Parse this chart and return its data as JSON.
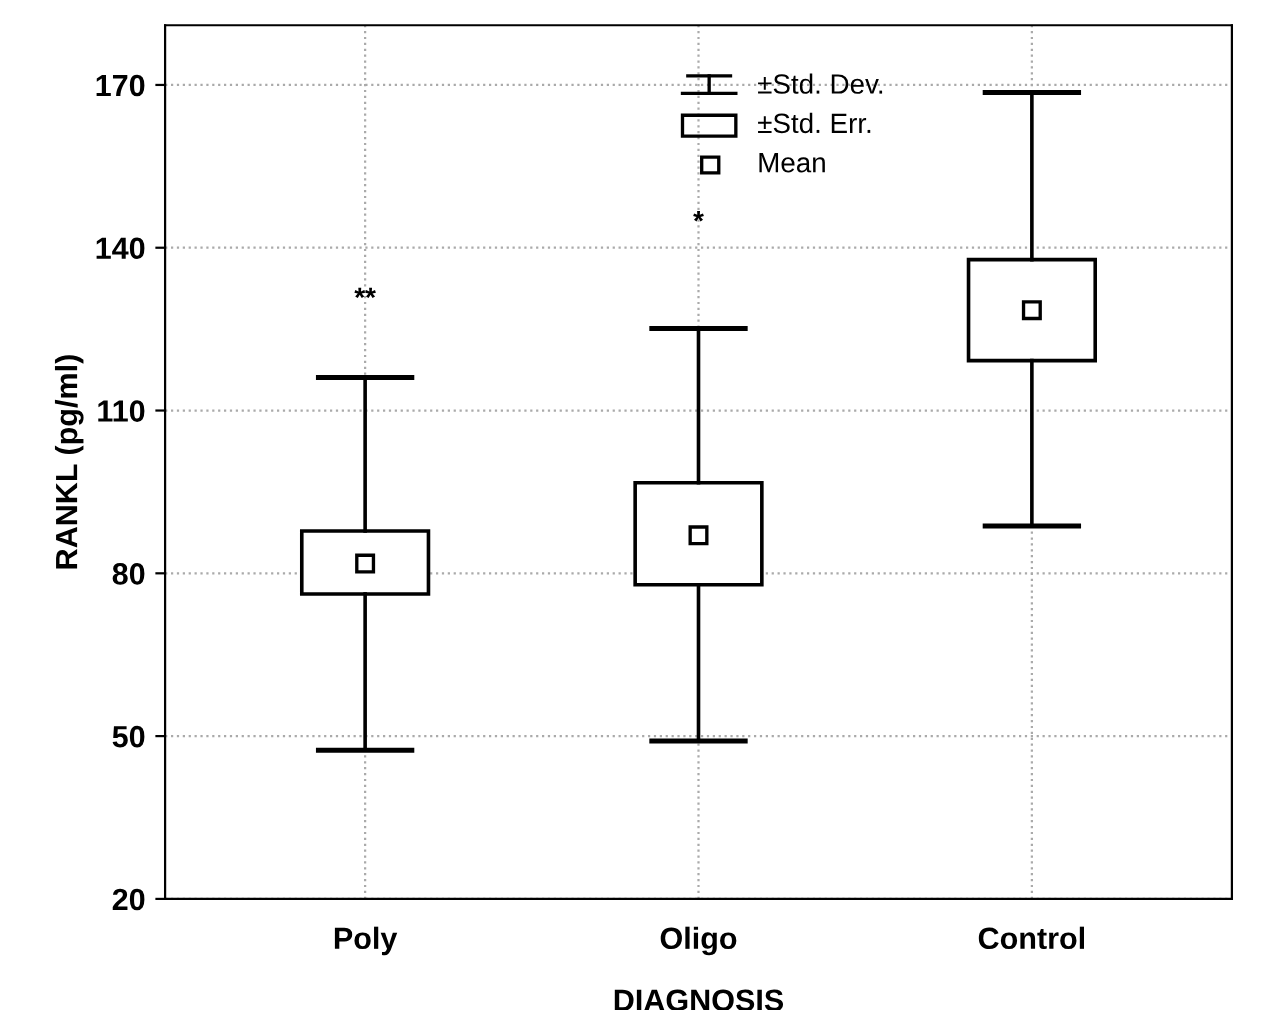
{
  "chart_data": {
    "type": "box",
    "xlabel": "DIAGNOSIS",
    "ylabel": "RANKL (pg/ml)",
    "categories": [
      "Poly",
      "Oligo",
      "Control"
    ],
    "series": [
      {
        "color": "#000000",
        "boxes": [
          {
            "low": 47.4,
            "q1": 76.2,
            "q3": 87.8,
            "high": 116.1,
            "mean": 81.8
          },
          {
            "low": 49.1,
            "q1": 77.9,
            "q3": 96.7,
            "high": 125.1,
            "mean": 87.0
          },
          {
            "low": 88.7,
            "q1": 119.2,
            "q3": 137.8,
            "high": 168.6,
            "mean": 128.5
          }
        ]
      }
    ],
    "ylim": [
      20,
      181
    ],
    "yticks": [
      20,
      50,
      80,
      110,
      140,
      170
    ],
    "grid": true,
    "annotations": [
      "±Std. Dev.",
      "±Std. Err.",
      "Mean",
      "**",
      "*"
    ]
  }
}
